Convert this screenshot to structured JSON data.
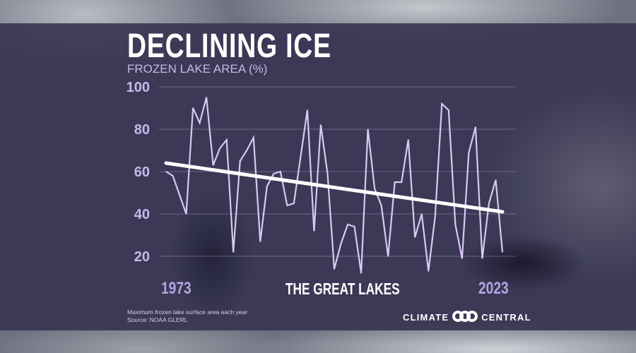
{
  "header": {
    "title": "DECLINING ICE",
    "subtitle": "FROZEN LAKE AREA (%)"
  },
  "footer": {
    "region_label": "THE GREAT LAKES",
    "note": "Maximum frozen lake surface area each year",
    "source": "Source: NOAA GLERL",
    "logo_left": "CLIMATE",
    "logo_right": "CENTRAL"
  },
  "colors": {
    "series": "#d9c9f5",
    "trend": "#ffffff",
    "tick": "#c7b8ea",
    "overlay": "#34314e"
  },
  "chart_data": {
    "type": "line",
    "title": "DECLINING ICE",
    "ylabel": "FROZEN LAKE AREA (%)",
    "xlabel": "",
    "ylim": [
      20,
      100
    ],
    "yticks": [
      "20",
      "40",
      "60",
      "80",
      "100"
    ],
    "xtick_labels": [
      "1973",
      "2023"
    ],
    "grid": "horizontal",
    "x": [
      1973,
      1974,
      1975,
      1976,
      1977,
      1978,
      1979,
      1980,
      1981,
      1982,
      1983,
      1984,
      1985,
      1986,
      1987,
      1988,
      1989,
      1990,
      1991,
      1992,
      1993,
      1994,
      1995,
      1996,
      1997,
      1998,
      1999,
      2000,
      2001,
      2002,
      2003,
      2004,
      2005,
      2006,
      2007,
      2008,
      2009,
      2010,
      2011,
      2012,
      2013,
      2014,
      2015,
      2016,
      2017,
      2018,
      2019,
      2020,
      2021,
      2022,
      2023
    ],
    "series": [
      {
        "values": [
          60,
          58,
          49,
          40,
          90,
          83,
          95,
          63,
          71,
          75,
          22,
          65,
          70,
          76,
          27,
          53,
          59,
          60,
          44,
          45,
          67,
          89,
          32,
          82,
          59,
          14,
          26,
          35,
          34,
          12,
          80,
          52,
          44,
          20,
          55,
          55,
          75,
          29,
          40,
          13,
          39,
          92,
          89,
          35,
          19,
          69,
          81,
          19,
          45,
          56,
          22
        ]
      }
    ],
    "trend": {
      "start": [
        1973,
        64
      ],
      "end": [
        2023,
        41
      ]
    }
  }
}
